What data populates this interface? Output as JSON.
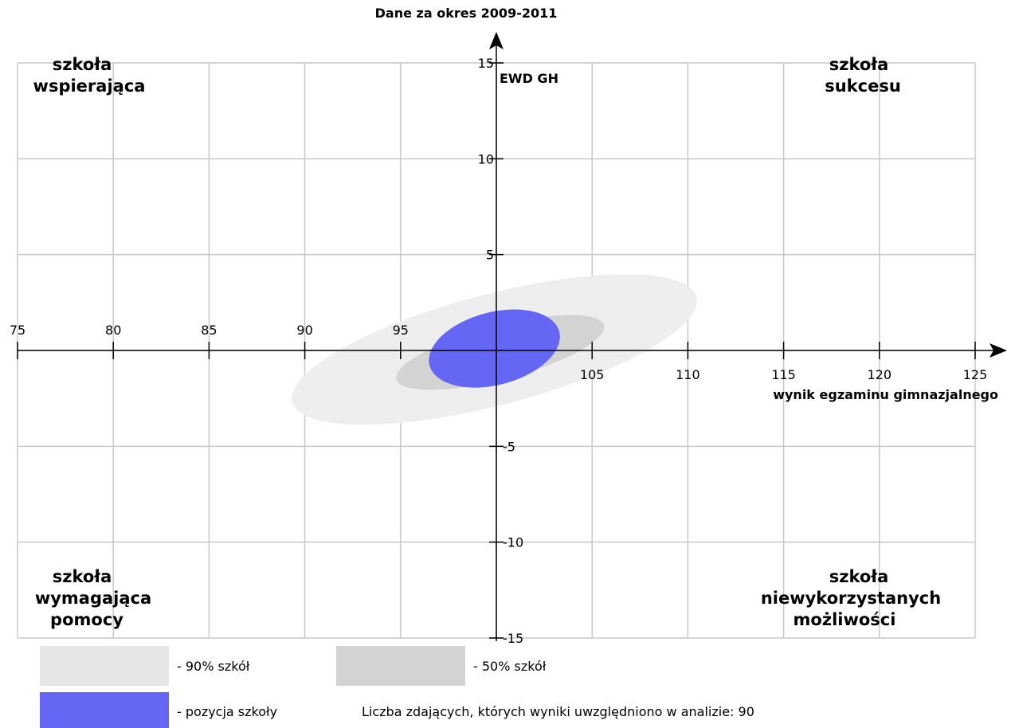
{
  "chart_data": {
    "type": "scatter",
    "title": "Dane za okres 2009-2011",
    "xlabel": "wynik egzaminu gimnazjalnego",
    "ylabel": "EWD GH",
    "xlim": [
      75,
      125
    ],
    "ylim": [
      -15,
      15
    ],
    "x_ticks": [
      75,
      80,
      85,
      90,
      95,
      105,
      110,
      115,
      120,
      125
    ],
    "y_ticks": [
      15,
      10,
      5,
      -5,
      -10,
      -15
    ],
    "grid": true,
    "quadrants": {
      "top_left": [
        "szkoła",
        "wspierająca"
      ],
      "top_right": [
        "szkoła",
        "sukcesu"
      ],
      "bottom_left": [
        "szkoła",
        "wymagająca",
        "pomocy"
      ],
      "bottom_right": [
        "szkoła",
        "niewykorzystanych",
        "możliwości"
      ]
    },
    "ellipses": [
      {
        "name": "- 90% szkół",
        "color": "#eeeeee",
        "center": [
          99.9,
          0.05
        ],
        "rx": 10.9,
        "ry": 2.9,
        "angle": 14.6
      },
      {
        "name": "- 50% szkół",
        "color": "#d3d3d3",
        "center": [
          100.2,
          -0.1
        ],
        "rx": 5.6,
        "ry": 1.4,
        "angle": 14.6
      },
      {
        "name": "- pozycja szkoły",
        "color": "#6666f4",
        "center": [
          99.9,
          0.1
        ],
        "rx": 3.5,
        "ry": 1.9,
        "angle": 14.6
      }
    ]
  },
  "legend": {
    "items": [
      {
        "label": "- 90% szkół",
        "color": "#e6e6e6"
      },
      {
        "label": "- 50% szkół",
        "color": "#d3d3d3"
      },
      {
        "label": "- pozycja szkoły",
        "color": "#6666f4"
      }
    ],
    "note": "Liczba zdających, których wyniki uwzględniono w analizie: 90"
  }
}
